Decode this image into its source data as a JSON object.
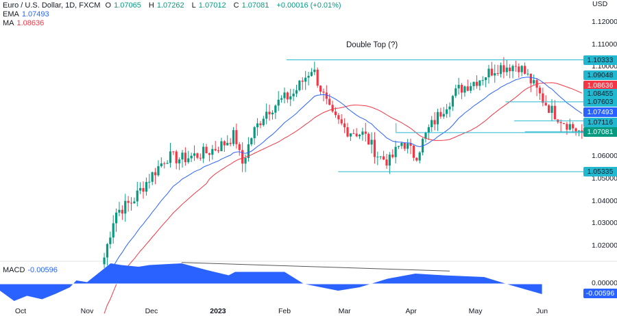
{
  "header": {
    "symbol": "Euro / U.S. Dollar, 1D, FXCM",
    "open_label": "O",
    "open": "1.07065",
    "high_label": "H",
    "high": "1.07262",
    "low_label": "L",
    "low": "1.07012",
    "close_label": "C",
    "close": "1.07081",
    "change": "+0.00016 (+0.01%)"
  },
  "indicators": {
    "ema_label": "EMA",
    "ema_value": "1.07493",
    "ma_label": "MA",
    "ma_value": "1.08636",
    "macd_label": "MACD",
    "macd_value": "-0.00596"
  },
  "colors": {
    "up": "#089981",
    "down": "#f23645",
    "ema": "#2962ff",
    "ma": "#f23645",
    "level": "#22b8cf",
    "macd": "#2962ff"
  },
  "chart_data": {
    "type": "candlestick",
    "title": "Double Top (?)",
    "currency": "USD",
    "ylim": [
      1.012,
      1.125
    ],
    "y_ticks": [
      "1.12000",
      "1.11000",
      "1.10000",
      "1.06000",
      "1.05000",
      "1.04000",
      "1.03000",
      "1.02000"
    ],
    "x_ticks": [
      "Oct",
      "Nov",
      "Dec",
      "2023",
      "Feb",
      "Mar",
      "Apr",
      "May",
      "Jun"
    ],
    "x_unit": "days since Oct 1 2022",
    "close_path": [
      [
        39,
        1.015
      ],
      [
        44,
        1.035
      ],
      [
        52,
        1.04
      ],
      [
        58,
        1.048
      ],
      [
        68,
        1.06
      ],
      [
        75,
        1.059
      ],
      [
        87,
        1.062
      ],
      [
        95,
        1.066
      ],
      [
        100,
        1.07
      ],
      [
        103,
        1.056
      ],
      [
        108,
        1.07
      ],
      [
        114,
        1.08
      ],
      [
        121,
        1.085
      ],
      [
        127,
        1.088
      ],
      [
        133,
        1.096
      ],
      [
        136,
        1.1
      ],
      [
        140,
        1.09
      ],
      [
        145,
        1.078
      ],
      [
        152,
        1.072
      ],
      [
        160,
        1.07
      ],
      [
        167,
        1.06
      ],
      [
        172,
        1.058
      ],
      [
        178,
        1.067
      ],
      [
        184,
        1.06
      ],
      [
        190,
        1.072
      ],
      [
        198,
        1.083
      ],
      [
        204,
        1.09
      ],
      [
        214,
        1.095
      ],
      [
        222,
        1.1
      ],
      [
        232,
        1.101
      ],
      [
        237,
        1.095
      ],
      [
        243,
        1.086
      ],
      [
        248,
        1.08
      ],
      [
        253,
        1.076
      ],
      [
        259,
        1.072
      ],
      [
        262,
        1.0708
      ]
    ],
    "levels": [
      {
        "value": "1.10333",
        "from_day": 124
      },
      {
        "value": "1.05335",
        "from_day": 148
      },
      {
        "value": "1.08455",
        "from_day": 226
      },
      {
        "value": "1.07603",
        "from_day": 230
      },
      {
        "value": "1.07116",
        "from_day": 235
      },
      {
        "value": "1.07081",
        "from_day": 175
      }
    ],
    "price_tags": [
      {
        "value": "1.10333",
        "color": "#22b8cf"
      },
      {
        "value": "1.09048",
        "color": "#22b8cf"
      },
      {
        "value": "1.08636",
        "color": "#f23645"
      },
      {
        "value": "1.08455",
        "color": "#22b8cf"
      },
      {
        "value": "1.07603",
        "color": "#22b8cf"
      },
      {
        "value": "1.07493",
        "color": "#2962ff"
      },
      {
        "value": "1.07116",
        "color": "#22b8cf"
      },
      {
        "value": "1.07081",
        "color": "#089981"
      }
    ],
    "macd": {
      "zero_label": "0.00000",
      "last_label": "-0.00596",
      "points": [
        [
          -10,
          -0.004
        ],
        [
          -3,
          -0.01
        ],
        [
          3,
          -0.007
        ],
        [
          10,
          -0.009
        ],
        [
          16,
          -0.006
        ],
        [
          23,
          -0.002
        ],
        [
          26,
          0.002
        ],
        [
          31,
          0.001
        ],
        [
          34,
          0.004
        ],
        [
          42,
          0.012
        ],
        [
          47,
          0.011
        ],
        [
          55,
          0.01
        ],
        [
          60,
          0.011
        ],
        [
          75,
          0.012
        ],
        [
          87,
          0.008
        ],
        [
          97,
          0.005
        ],
        [
          100,
          0.007
        ],
        [
          113,
          0.007
        ],
        [
          123,
          0.007
        ],
        [
          132,
          0.0
        ],
        [
          148,
          -0.004
        ],
        [
          158,
          -0.002
        ],
        [
          171,
          0.003
        ],
        [
          184,
          0.006
        ],
        [
          197,
          0.005
        ],
        [
          216,
          0.004
        ],
        [
          229,
          -0.001
        ],
        [
          243,
          -0.006
        ]
      ],
      "trendline": [
        [
          75,
          0.0125
        ],
        [
          200,
          0.0075
        ]
      ]
    }
  }
}
